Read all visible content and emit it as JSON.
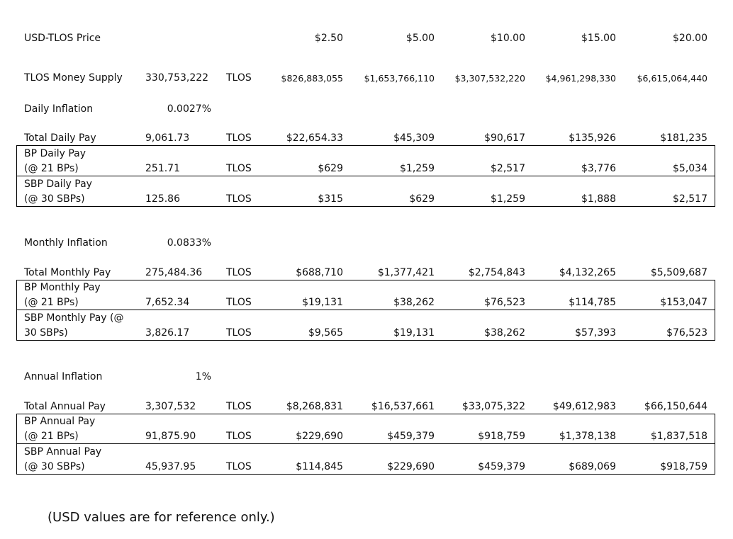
{
  "header": {
    "label": "USD-TLOS Price",
    "prices": [
      "$2.50",
      "$5.00",
      "$10.00",
      "$15.00",
      "$20.00"
    ]
  },
  "money_supply": {
    "label": "TLOS Money Supply",
    "amount": "330,753,222",
    "unit": "TLOS",
    "values": [
      "$826,883,055",
      "$1,653,766,110",
      "$3,307,532,220",
      "$4,961,298,330",
      "$6,615,064,440"
    ]
  },
  "sections": [
    {
      "inflation_label": "Daily Inflation",
      "inflation_value": "0.0027%",
      "rows": [
        {
          "label": "Total Daily Pay",
          "amount": "9,061.73",
          "unit": "TLOS",
          "values": [
            "$22,654.33",
            "$45,309",
            "$90,617",
            "$135,926",
            "$181,235"
          ]
        },
        {
          "label": "BP Daily Pay",
          "label2": "(@ 21 BPs)",
          "amount": "251.71",
          "unit": "TLOS",
          "values": [
            "$629",
            "$1,259",
            "$2,517",
            "$3,776",
            "$5,034"
          ]
        },
        {
          "label": "SBP Daily Pay",
          "label2": "(@ 30 SBPs)",
          "amount": "125.86",
          "unit": "TLOS",
          "values": [
            "$315",
            "$629",
            "$1,259",
            "$1,888",
            "$2,517"
          ]
        }
      ]
    },
    {
      "inflation_label": "Monthly Inflation",
      "inflation_value": "0.0833%",
      "rows": [
        {
          "label": "Total Monthly Pay",
          "amount": "275,484.36",
          "unit": "TLOS",
          "values": [
            "$688,710",
            "$1,377,421",
            "$2,754,843",
            "$4,132,265",
            "$5,509,687"
          ]
        },
        {
          "label": "BP Monthly Pay",
          "label2": "(@ 21 BPs)",
          "amount": "7,652.34",
          "unit": "TLOS",
          "values": [
            "$19,131",
            "$38,262",
            "$76,523",
            "$114,785",
            "$153,047"
          ]
        },
        {
          "label": "SBP Monthly Pay (@",
          "label2": "30 SBPs)",
          "amount": "3,826.17",
          "unit": "TLOS",
          "values": [
            "$9,565",
            "$19,131",
            "$38,262",
            "$57,393",
            "$76,523"
          ]
        }
      ]
    },
    {
      "inflation_label": "Annual Inflation",
      "inflation_value": "1%",
      "rows": [
        {
          "label": "Total Annual Pay",
          "amount": "3,307,532",
          "unit": "TLOS",
          "values": [
            "$8,268,831",
            "$16,537,661",
            "$33,075,322",
            "$49,612,983",
            "$66,150,644"
          ]
        },
        {
          "label": "BP Annual Pay",
          "label2": "(@ 21 BPs)",
          "amount": "91,875.90",
          "unit": "TLOS",
          "values": [
            "$229,690",
            "$459,379",
            "$918,759",
            "$1,378,138",
            "$1,837,518"
          ]
        },
        {
          "label": "SBP Annual Pay",
          "label2": "(@ 30 SBPs)",
          "amount": "45,937.95",
          "unit": "TLOS",
          "values": [
            "$114,845",
            "$229,690",
            "$459,379",
            "$689,069",
            "$918,759"
          ]
        }
      ]
    }
  ],
  "footnote": "(USD values are for reference only.)"
}
